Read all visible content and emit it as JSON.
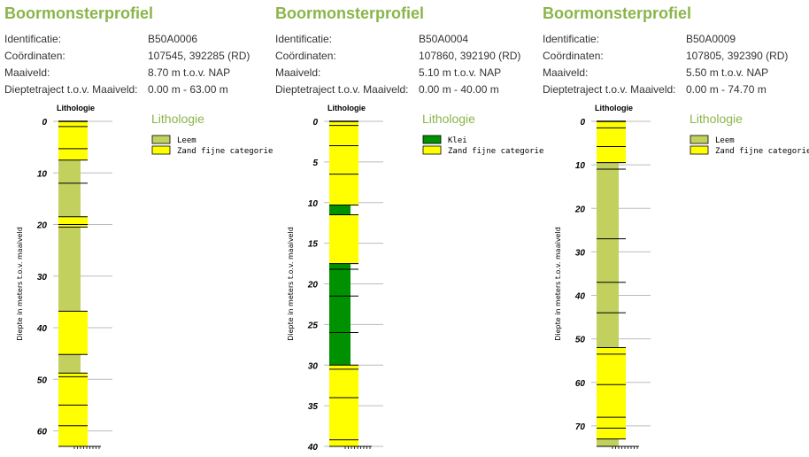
{
  "colors": {
    "title": "#8ab54a",
    "Leem": "#c2d15e",
    "Klei": "#009100",
    "Zand fijne categorie": "#ffff00",
    "grid": "#bbbbbb"
  },
  "profiles": [
    {
      "title": "Boormonsterprofiel",
      "meta": [
        {
          "label": "Identificatie:",
          "value": "B50A0006"
        },
        {
          "label": "Coördinaten:",
          "value": "107545, 392285 (RD)"
        },
        {
          "label": "Maaiveld:",
          "value": "8.70 m t.o.v. NAP"
        },
        {
          "label": "Dieptetraject t.o.v. Maaiveld:",
          "value": "0.00 m - 63.00 m"
        }
      ],
      "legend_title": "Lithologie",
      "legend": [
        "Leem",
        "Zand fijne categorie"
      ]
    },
    {
      "title": "Boormonsterprofiel",
      "meta": [
        {
          "label": "Identificatie:",
          "value": "B50A0004"
        },
        {
          "label": "Coördinaten:",
          "value": "107860, 392190 (RD)"
        },
        {
          "label": "Maaiveld:",
          "value": "5.10 m t.o.v. NAP"
        },
        {
          "label": "Dieptetraject t.o.v. Maaiveld:",
          "value": "0.00 m - 40.00 m"
        }
      ],
      "legend_title": "Lithologie",
      "legend": [
        "Klei",
        "Zand fijne categorie"
      ]
    },
    {
      "title": "Boormonsterprofiel",
      "meta": [
        {
          "label": "Identificatie:",
          "value": "B50A0009"
        },
        {
          "label": "Coördinaten:",
          "value": "107805, 392390 (RD)"
        },
        {
          "label": "Maaiveld:",
          "value": "5.50 m t.o.v. NAP"
        },
        {
          "label": "Dieptetraject t.o.v. Maaiveld:",
          "value": "0.00 m - 74.70 m"
        }
      ],
      "legend_title": "Lithologie",
      "legend": [
        "Leem",
        "Zand fijne categorie"
      ]
    }
  ],
  "chart_data": [
    {
      "type": "bar",
      "column_title": "Lithologie",
      "ylabel": "Diepte in meters t.o.v. maaiveld",
      "ylim": [
        0,
        63
      ],
      "ticks": [
        0,
        10,
        20,
        30,
        40,
        50,
        60
      ],
      "grid": true,
      "layers": [
        {
          "top": 0,
          "bottom": 7.5,
          "lithology": "Zand fijne categorie"
        },
        {
          "top": 7.5,
          "bottom": 18.5,
          "lithology": "Leem"
        },
        {
          "top": 18.5,
          "bottom": 20.5,
          "lithology": "Zand fijne categorie"
        },
        {
          "top": 20.5,
          "bottom": 36.8,
          "lithology": "Leem"
        },
        {
          "top": 36.8,
          "bottom": 45.2,
          "lithology": "Zand fijne categorie"
        },
        {
          "top": 45.2,
          "bottom": 48.8,
          "lithology": "Leem"
        },
        {
          "top": 48.8,
          "bottom": 63,
          "lithology": "Zand fijne categorie"
        }
      ],
      "sample_boundaries": [
        1.0,
        5.3,
        7.5,
        12.0,
        18.5,
        20.0,
        20.5,
        36.8,
        45.2,
        48.8,
        49.5,
        55.0,
        59.0
      ]
    },
    {
      "type": "bar",
      "column_title": "Lithologie",
      "ylabel": "Diepte in meters t.o.v. maaiveld",
      "ylim": [
        0,
        40
      ],
      "ticks": [
        0,
        5,
        10,
        15,
        20,
        25,
        30,
        35,
        40
      ],
      "grid": true,
      "layers": [
        {
          "top": 0,
          "bottom": 10.3,
          "lithology": "Zand fijne categorie"
        },
        {
          "top": 10.3,
          "bottom": 11.5,
          "lithology": "Klei"
        },
        {
          "top": 11.5,
          "bottom": 17.5,
          "lithology": "Zand fijne categorie"
        },
        {
          "top": 17.5,
          "bottom": 30.0,
          "lithology": "Klei"
        },
        {
          "top": 30.0,
          "bottom": 40,
          "lithology": "Zand fijne categorie"
        }
      ],
      "sample_boundaries": [
        0.5,
        3.0,
        6.5,
        10.3,
        11.5,
        17.5,
        18.2,
        21.5,
        26.0,
        30.0,
        30.5,
        34.0,
        39.2
      ]
    },
    {
      "type": "bar",
      "column_title": "Lithologie",
      "ylabel": "Diepte in meters t.o.v. maaiveld",
      "ylim": [
        0,
        74.7
      ],
      "ticks": [
        0,
        10,
        20,
        30,
        40,
        50,
        60,
        70
      ],
      "grid": true,
      "layers": [
        {
          "top": 0,
          "bottom": 9.5,
          "lithology": "Zand fijne categorie"
        },
        {
          "top": 9.5,
          "bottom": 52.0,
          "lithology": "Leem"
        },
        {
          "top": 52.0,
          "bottom": 73.0,
          "lithology": "Zand fijne categorie"
        },
        {
          "top": 73.0,
          "bottom": 74.7,
          "lithology": "Leem"
        }
      ],
      "sample_boundaries": [
        1.5,
        5.8,
        9.5,
        11.0,
        27.0,
        37.0,
        44.0,
        52.0,
        53.5,
        60.5,
        68.0,
        70.5,
        73.0
      ]
    }
  ]
}
